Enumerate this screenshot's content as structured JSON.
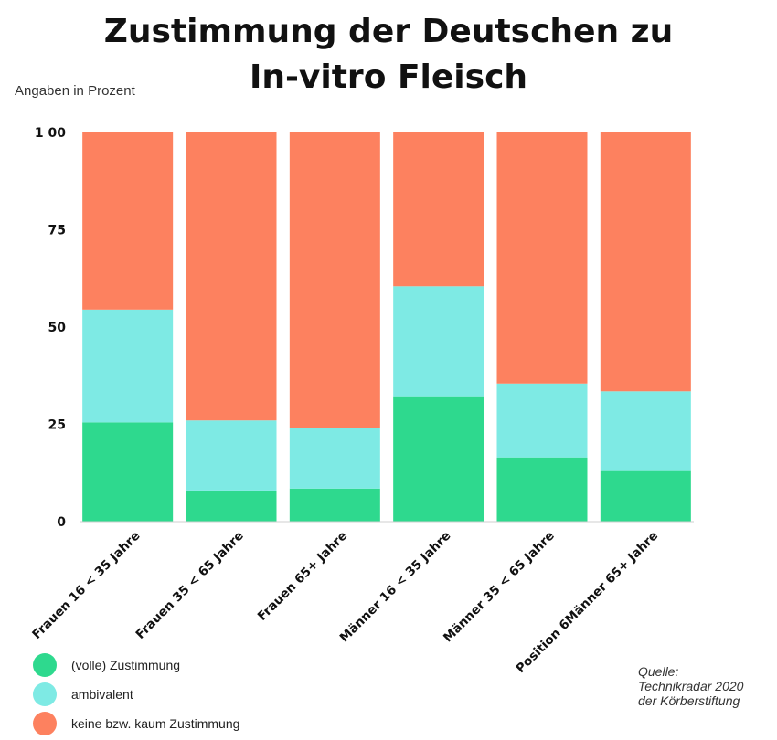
{
  "header": {
    "title_line1": "Zustimmung der Deutschen zu",
    "title_line2": "In-vitro Fleisch",
    "unit_label": "Angaben in Prozent"
  },
  "chart_data": {
    "type": "bar",
    "stacked": true,
    "title": "Zustimmung der Deutschen zu In-vitro Fleisch",
    "ylabel": "Angaben in Prozent",
    "ylim": [
      0,
      100
    ],
    "yticks": [
      0,
      25,
      50,
      75,
      100
    ],
    "ytick_labels": [
      "0",
      "25",
      "50",
      "75",
      "1 00"
    ],
    "categories": [
      "Frauen 16 < 35 Jahre",
      "Frauen 35 < 65 Jahre",
      "Frauen 65+ Jahre",
      "Männer 16 < 35 Jahre",
      "Männer 35 < 65 Jahre",
      "Position 6Männer 65+ Jahre"
    ],
    "series": [
      {
        "name": "(volle) Zustimmung",
        "color": "#2ed98e",
        "values": [
          25.5,
          8,
          8.5,
          32,
          16.5,
          13
        ]
      },
      {
        "name": "ambivalent",
        "color": "#7eeae4",
        "values": [
          29,
          18,
          15.5,
          28.5,
          19,
          20.5
        ]
      },
      {
        "name": "keine bzw. kaum Zustimmung",
        "color": "#fd815f",
        "values": [
          45.5,
          74,
          76,
          39.5,
          64.5,
          66.5
        ]
      }
    ],
    "grid": false,
    "legend": "bottom-left"
  },
  "source": {
    "line1": "Quelle:",
    "line2": "Technikradar 2020",
    "line3": "der Körberstiftung"
  }
}
